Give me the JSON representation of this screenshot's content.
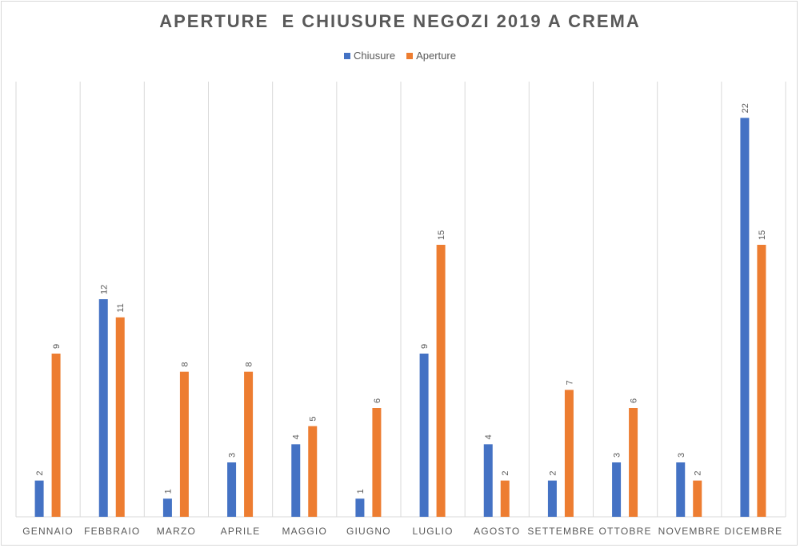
{
  "chart_data": {
    "type": "bar",
    "title": "APERTURE  E CHIUSURE NEGOZI 2019 A CREMA",
    "categories": [
      "GENNAIO",
      "FEBBRAIO",
      "MARZO",
      "APRILE",
      "MAGGIO",
      "GIUGNO",
      "LUGLIO",
      "AGOSTO",
      "SETTEMBRE",
      "OTTOBRE",
      "NOVEMBRE",
      "DICEMBRE"
    ],
    "series": [
      {
        "name": "Chiusure",
        "values": [
          2,
          12,
          1,
          3,
          4,
          1,
          9,
          4,
          2,
          3,
          3,
          22
        ],
        "color": "#4472c4"
      },
      {
        "name": "Aperture",
        "values": [
          9,
          11,
          8,
          8,
          5,
          6,
          15,
          2,
          7,
          6,
          2,
          15
        ],
        "color": "#ed7d31"
      }
    ],
    "ylim": [
      0,
      24
    ],
    "grid": "vertical category separators",
    "legend_position": "top",
    "data_labels": "rotated, above bars"
  }
}
